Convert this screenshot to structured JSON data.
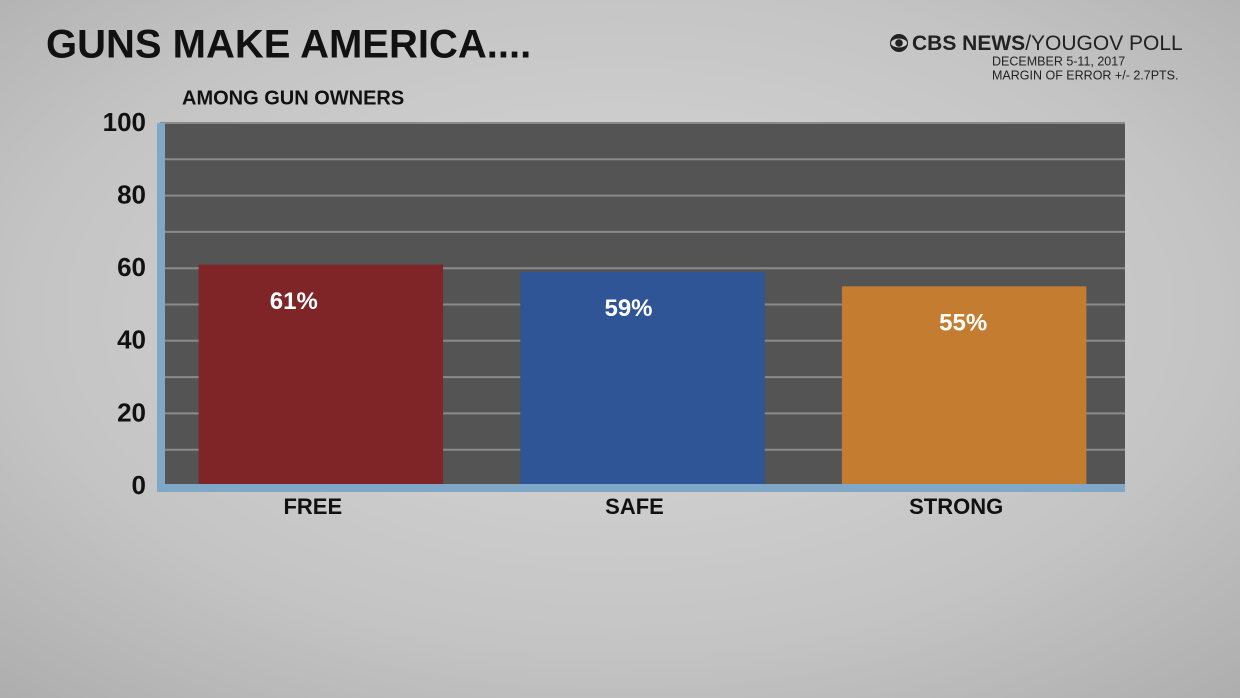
{
  "chart_data": {
    "type": "bar",
    "title": "GUNS MAKE AMERICA....",
    "subtitle": "AMONG GUN OWNERS",
    "source": {
      "brand": "CBS NEWS",
      "poll": "/YOUGOV POLL",
      "dates": "DECEMBER 5-11, 2017",
      "margin": "MARGIN OF ERROR +/- 2.7PTS."
    },
    "categories": [
      "FREE",
      "SAFE",
      "STRONG"
    ],
    "values": [
      61,
      59,
      55
    ],
    "value_labels": [
      "61%",
      "59%",
      "55%"
    ],
    "colors": [
      "#7f2528",
      "#2f5596",
      "#c47d30"
    ],
    "ylim": [
      0,
      100
    ],
    "yticks": [
      0,
      20,
      40,
      60,
      80,
      100
    ],
    "minor_yticks": [
      10,
      30,
      50,
      70,
      90
    ],
    "grid": true
  }
}
